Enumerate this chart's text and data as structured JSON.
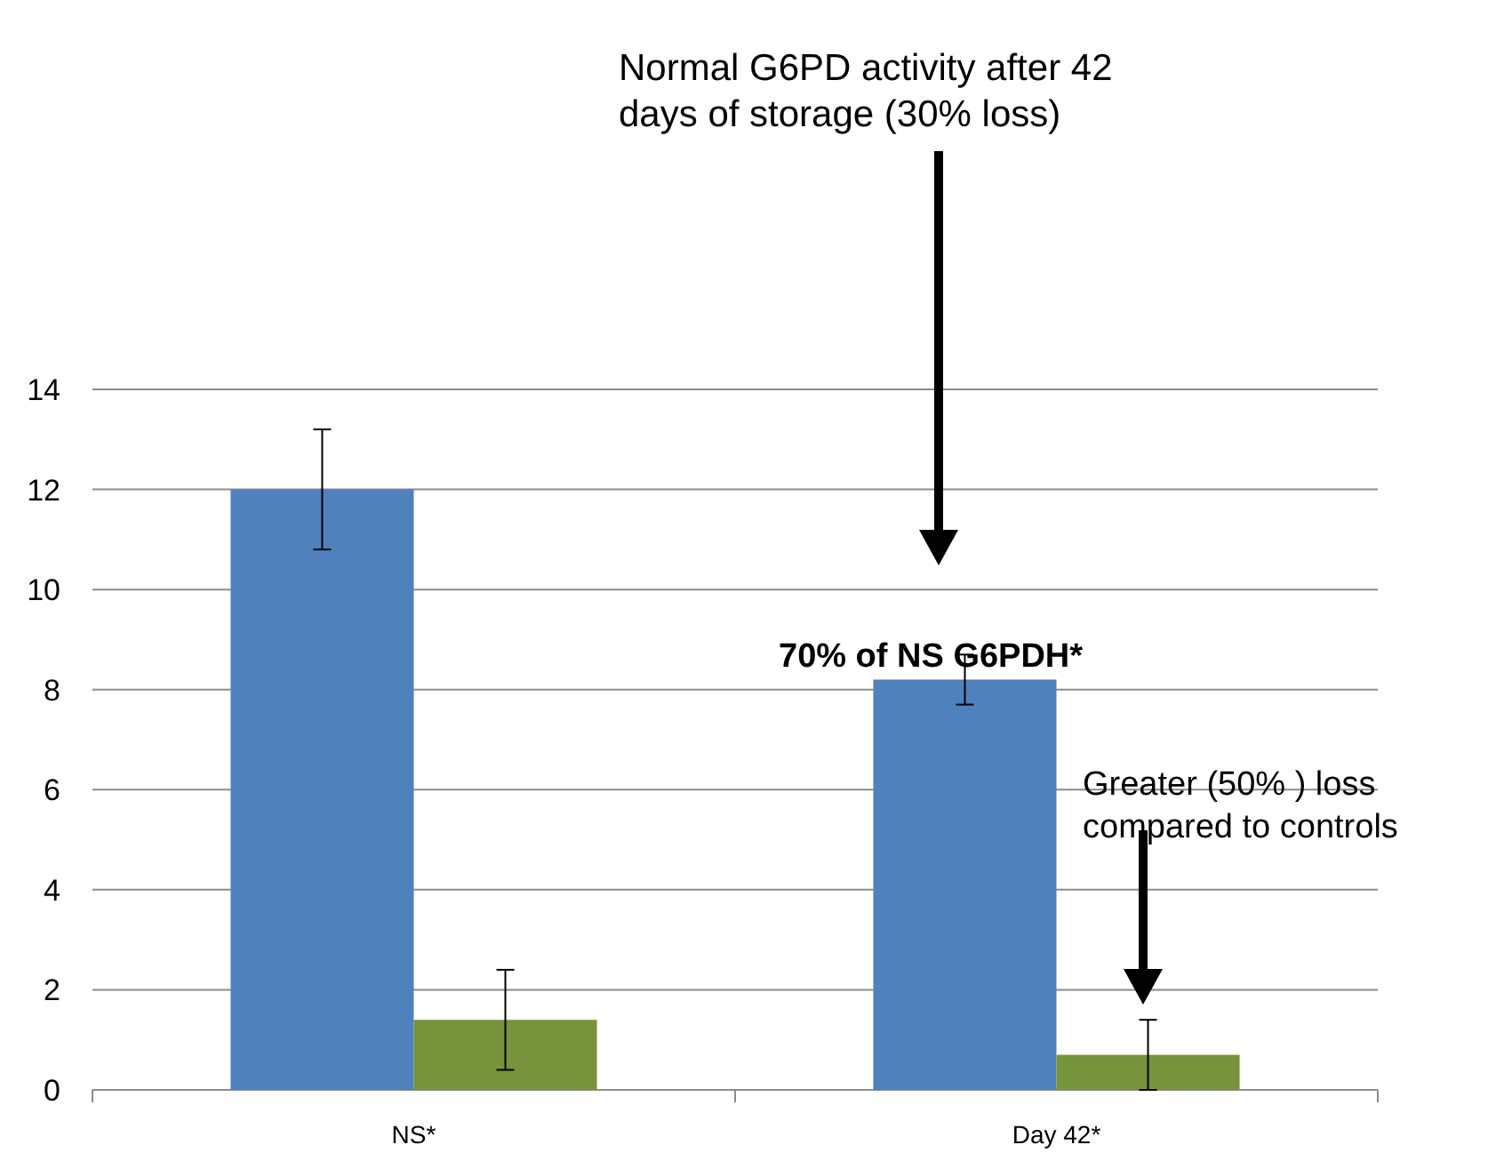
{
  "chart_data": {
    "type": "bar",
    "categories": [
      "NS*",
      "Day 42*"
    ],
    "series": [
      {
        "color": "#4f81bd",
        "values": [
          12,
          8.2
        ],
        "errors": [
          1.2,
          0.5
        ]
      },
      {
        "color": "#77933c",
        "values": [
          1.4,
          0.7
        ],
        "errors": [
          1.0,
          0.7
        ]
      }
    ],
    "ylim": [
      0,
      14
    ],
    "yticks": [
      0,
      2,
      4,
      6,
      8,
      10,
      12,
      14
    ],
    "grid": "y",
    "annotations": [
      "Normal G6PD activity after 42 days of storage (30% loss)",
      "70% of NS G6PDH*",
      "Greater (50% ) loss compared to controls"
    ]
  }
}
